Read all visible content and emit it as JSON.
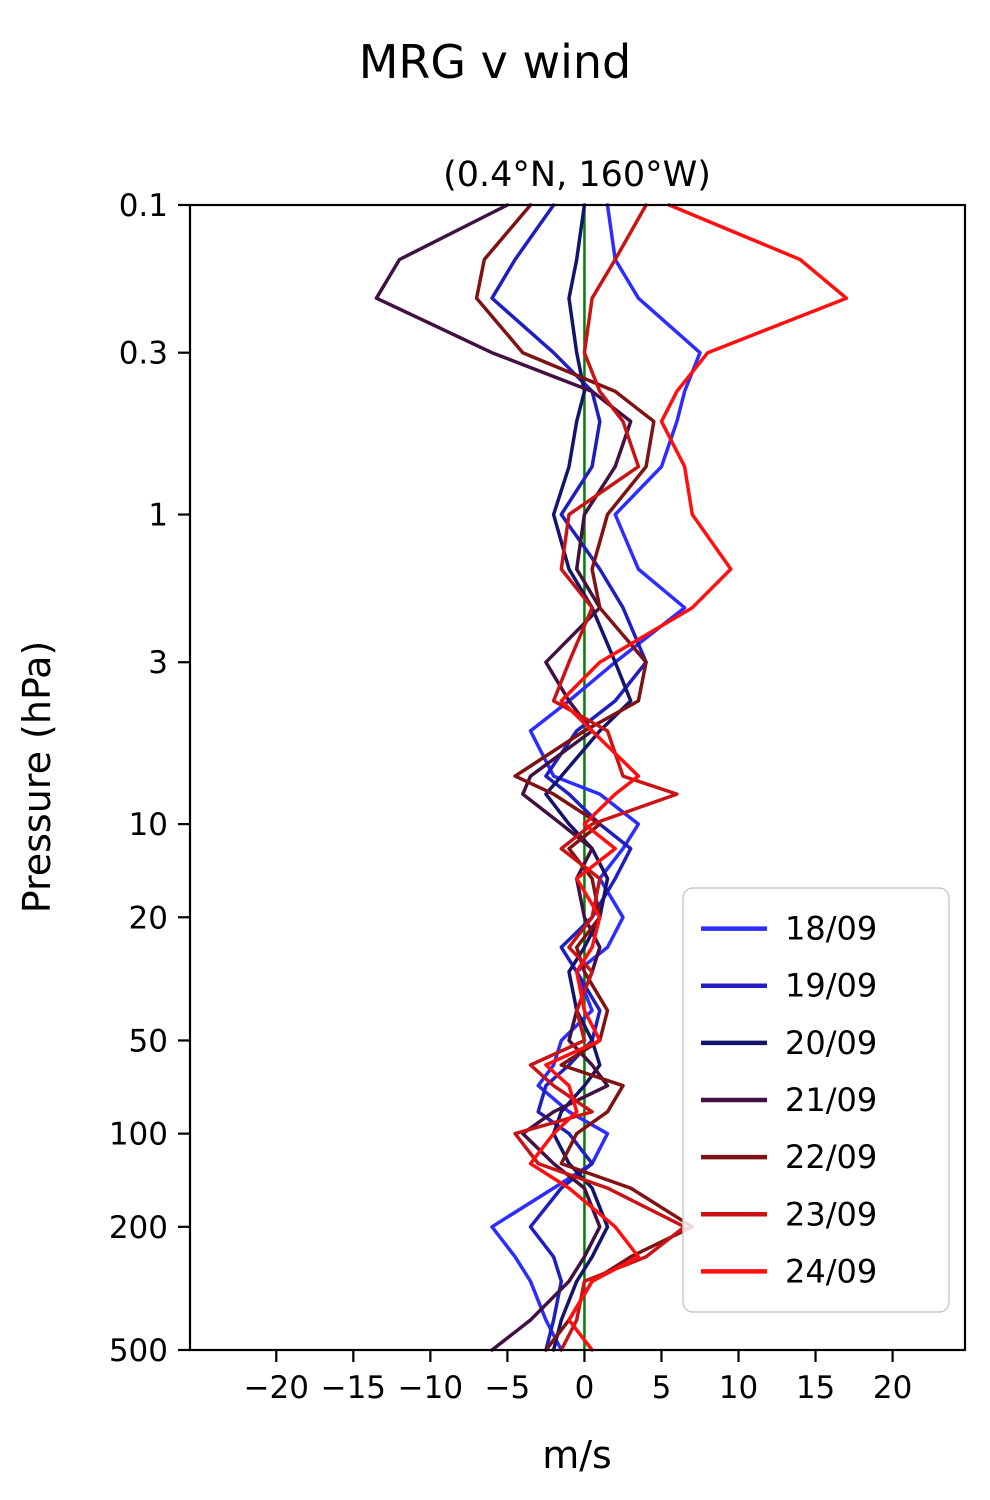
{
  "chart_data": {
    "type": "line",
    "title": "MRG v wind",
    "subtitle": "(0.4°N, 160°W)",
    "xlabel": "m/s",
    "ylabel": "Pressure (hPa)",
    "orientation": "vertical-profile",
    "grid": false,
    "x_axis": {
      "range": [
        -25.6,
        24.7
      ],
      "ticks": [
        -20,
        -15,
        -10,
        -5,
        0,
        5,
        10,
        15,
        20
      ],
      "tick_labels": [
        "−20",
        "−15",
        "−10",
        "−5",
        "0",
        "5",
        "10",
        "15",
        "20"
      ]
    },
    "y_axis": {
      "scale": "log",
      "inverted": true,
      "range": [
        0.1,
        500
      ],
      "ticks": [
        0.1,
        0.3,
        1,
        3,
        10,
        20,
        50,
        100,
        200,
        500
      ],
      "tick_labels": [
        "0.1",
        "0.3",
        "1",
        "3",
        "10",
        "20",
        "50",
        "100",
        "200",
        "500"
      ]
    },
    "zero_line": {
      "x": 0,
      "color": "#008000"
    },
    "legend_position": "lower right",
    "pressure_levels": [
      0.1,
      0.15,
      0.2,
      0.3,
      0.4,
      0.5,
      0.7,
      1,
      1.5,
      2,
      3,
      4,
      5,
      7,
      8,
      10,
      12,
      15,
      20,
      25,
      30,
      40,
      50,
      60,
      70,
      85,
      100,
      125,
      150,
      200,
      250,
      300,
      400,
      500
    ],
    "series": [
      {
        "name": "18/09",
        "color": "#2d2dff",
        "values": [
          1.5,
          2.0,
          3.5,
          7.5,
          6.5,
          6.0,
          5.0,
          2.0,
          3.5,
          6.5,
          2.0,
          -1.0,
          -3.5,
          -2.0,
          1.0,
          3.5,
          2.5,
          1.0,
          2.5,
          1.5,
          -0.5,
          0.5,
          -1.5,
          -2.0,
          -3.0,
          -1.0,
          1.5,
          0.5,
          -2.0,
          -6.0,
          -4.5,
          -3.5,
          -2.5,
          -1.5
        ]
      },
      {
        "name": "19/09",
        "color": "#1f1fbf",
        "values": [
          -2.0,
          -4.5,
          -6.0,
          -2.0,
          0.5,
          1.0,
          0.5,
          -1.5,
          1.0,
          2.5,
          4.0,
          2.0,
          -0.5,
          -2.5,
          -1.0,
          1.0,
          3.0,
          2.0,
          0.5,
          -1.5,
          -0.5,
          1.0,
          0.5,
          -1.0,
          -2.5,
          -3.0,
          -1.0,
          0.5,
          -1.5,
          -3.5,
          -2.0,
          -1.5,
          -2.0,
          -2.5
        ]
      },
      {
        "name": "20/09",
        "color": "#14146e",
        "values": [
          0.0,
          -0.5,
          -1.0,
          -0.5,
          0.0,
          -0.5,
          -1.0,
          -2.0,
          -1.0,
          0.5,
          2.0,
          3.0,
          1.0,
          -1.5,
          -2.5,
          -1.0,
          0.5,
          1.5,
          1.0,
          0.0,
          -1.0,
          -0.5,
          0.5,
          1.0,
          0.0,
          -1.5,
          -2.0,
          -1.0,
          0.5,
          1.5,
          0.5,
          -0.5,
          -1.5,
          -2.0
        ]
      },
      {
        "name": "21/09",
        "color": "#431043",
        "values": [
          -5.0,
          -12.0,
          -13.5,
          -6.0,
          0.5,
          3.0,
          2.0,
          0.0,
          -0.5,
          1.0,
          -2.5,
          -1.0,
          0.5,
          -3.5,
          -4.0,
          -1.5,
          0.5,
          -0.5,
          0.0,
          1.0,
          0.5,
          -0.5,
          -1.0,
          0.5,
          1.5,
          -2.0,
          -4.0,
          -2.0,
          0.0,
          1.0,
          0.0,
          -1.0,
          -3.5,
          -6.0
        ]
      },
      {
        "name": "22/09",
        "color": "#7f1212",
        "values": [
          -3.5,
          -6.5,
          -7.0,
          -4.0,
          2.0,
          4.5,
          4.0,
          1.5,
          0.5,
          1.0,
          4.0,
          3.5,
          0.0,
          -4.5,
          -2.0,
          1.0,
          -1.0,
          0.5,
          1.0,
          -0.5,
          0.0,
          1.5,
          1.0,
          -1.5,
          2.5,
          1.5,
          -0.5,
          -1.5,
          3.0,
          7.0,
          3.0,
          0.5,
          -1.0,
          -2.5
        ]
      },
      {
        "name": "23/09",
        "color": "#c81414",
        "values": [
          4.0,
          2.0,
          0.5,
          0.0,
          1.0,
          2.5,
          3.5,
          -1.0,
          -1.5,
          0.5,
          -1.0,
          -2.0,
          1.5,
          2.5,
          6.0,
          0.5,
          -1.5,
          1.0,
          0.5,
          -1.0,
          0.5,
          -0.5,
          0.0,
          -3.5,
          -2.0,
          0.5,
          -4.5,
          -3.0,
          1.5,
          6.5,
          4.0,
          0.0,
          -0.5,
          -1.5
        ]
      },
      {
        "name": "24/09",
        "color": "#ff0f0f",
        "values": [
          5.5,
          14.0,
          17.0,
          8.0,
          6.0,
          5.0,
          6.5,
          7.0,
          9.5,
          7.0,
          1.0,
          -1.5,
          0.5,
          3.5,
          2.0,
          0.0,
          2.0,
          -0.5,
          1.0,
          0.5,
          -0.5,
          0.0,
          1.0,
          -2.5,
          -1.0,
          -0.5,
          -2.0,
          -3.5,
          -1.0,
          2.0,
          3.5,
          0.5,
          -1.0,
          0.5
        ]
      }
    ]
  }
}
